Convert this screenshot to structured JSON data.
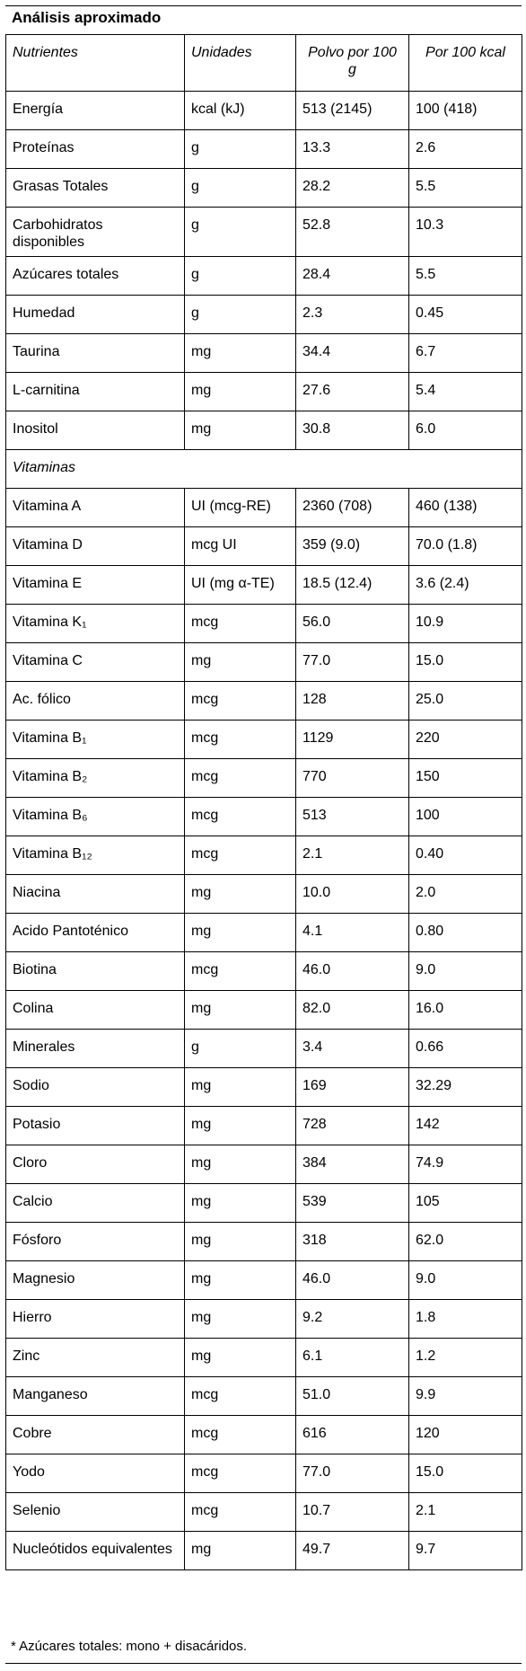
{
  "title": "Análisis aproximado",
  "table": {
    "header": [
      "Nutrientes",
      "Unidades",
      "Polvo por 100 g",
      "Por 100 kcal"
    ],
    "rows": [
      [
        "Energía",
        "kcal (kJ)",
        "513 (2145)",
        "100 (418)"
      ],
      [
        "Proteínas",
        "g",
        "13.3",
        "2.6"
      ],
      [
        "Grasas Totales",
        "g",
        "28.2",
        "5.5"
      ],
      [
        "Carbohidratos disponibles",
        "g",
        "52.8",
        "10.3"
      ],
      [
        "Azúcares totales",
        "g",
        "28.4",
        "5.5"
      ],
      [
        "Humedad",
        "g",
        "2.3",
        "0.45"
      ],
      [
        "Taurina",
        "mg",
        "34.4",
        "6.7"
      ],
      [
        "L-carnitina",
        "mg",
        "27.6",
        "5.4"
      ],
      [
        "Inositol",
        "mg",
        "30.8",
        "6.0"
      ],
      [
        "Vitaminas"
      ],
      [
        "Vitamina A",
        "UI (mcg-RE)",
        "2360 (708)",
        "460 (138)"
      ],
      [
        "Vitamina D",
        "mcg UI",
        "359 (9.0)",
        "70.0 (1.8)"
      ],
      [
        "Vitamina E",
        "UI (mg α-TE)",
        "18.5 (12.4)",
        "3.6 (2.4)"
      ],
      [
        "Vitamina K₁",
        "mcg",
        "56.0",
        "10.9"
      ],
      [
        "Vitamina C",
        "mg",
        "77.0",
        "15.0"
      ],
      [
        "Ac. fólico",
        "mcg",
        "128",
        "25.0"
      ],
      [
        "Vitamina B₁",
        "mcg",
        "1129",
        "220"
      ],
      [
        "Vitamina B₂",
        "mcg",
        "770",
        "150"
      ],
      [
        "Vitamina B₆",
        "mcg",
        "513",
        "100"
      ],
      [
        "Vitamina B₁₂",
        "mcg",
        "2.1",
        "0.40"
      ],
      [
        "Niacina",
        "mg",
        "10.0",
        "2.0"
      ],
      [
        "Acido Pantoténico",
        "mg",
        "4.1",
        "0.80"
      ],
      [
        "Biotina",
        "mcg",
        "46.0",
        "9.0"
      ],
      [
        "Colina",
        "mg",
        "82.0",
        "16.0"
      ],
      [
        "Minerales",
        "g",
        "3.4",
        "0.66"
      ],
      [
        "Sodio",
        "mg",
        "169",
        "32.29"
      ],
      [
        "Potasio",
        "mg",
        "728",
        "142"
      ],
      [
        "Cloro",
        "mg",
        "384",
        "74.9"
      ],
      [
        "Calcio",
        "mg",
        "539",
        "105"
      ],
      [
        "Fósforo",
        "mg",
        "318",
        "62.0"
      ],
      [
        "Magnesio",
        "mg",
        "46.0",
        "9.0"
      ],
      [
        "Hierro",
        "mg",
        "9.2",
        "1.8"
      ],
      [
        "Zinc",
        "mg",
        "6.1",
        "1.2"
      ],
      [
        "Manganeso",
        "mcg",
        "51.0",
        "9.9"
      ],
      [
        "Cobre",
        "mcg",
        "616",
        "120"
      ],
      [
        "Yodo",
        "mcg",
        "77.0",
        "15.0"
      ],
      [
        "Selenio",
        "mcg",
        "10.7",
        "2.1"
      ],
      [
        "Nucleótidos equivalentes",
        "mg",
        "49.7",
        "9.7"
      ]
    ]
  },
  "footnote": "* Azúcares totales: mono + disacáridos."
}
